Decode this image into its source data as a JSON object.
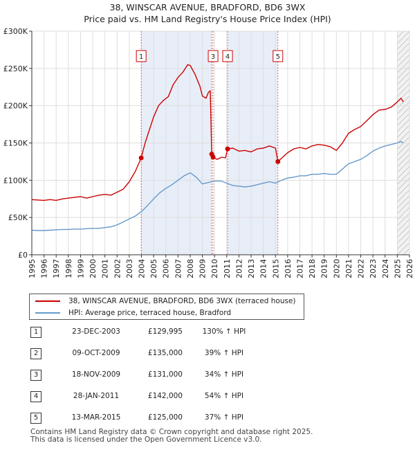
{
  "title": {
    "line1": "38, WINSCAR AVENUE, BRADFORD, BD6 3WX",
    "line2": "Price paid vs. HM Land Registry's House Price Index (HPI)"
  },
  "colors": {
    "property": "#cc0000",
    "hpi": "#6699cc",
    "shade": "#e8eef8",
    "marker_line": "#cc0000",
    "grid": "#dddddd"
  },
  "chart_data": {
    "type": "line",
    "title": "Price paid vs. HM Land Registry's House Price Index (HPI)",
    "xlabel": "",
    "ylabel": "",
    "xlim": [
      1995,
      2026
    ],
    "ylim": [
      0,
      300000
    ],
    "y_ticks": [
      0,
      50000,
      100000,
      150000,
      200000,
      250000,
      300000
    ],
    "y_tick_labels": [
      "£0",
      "£50K",
      "£100K",
      "£150K",
      "£200K",
      "£250K",
      "£300K"
    ],
    "x_ticks": [
      1995,
      1996,
      1997,
      1998,
      1999,
      2000,
      2001,
      2002,
      2003,
      2004,
      2005,
      2006,
      2007,
      2008,
      2009,
      2010,
      2011,
      2012,
      2013,
      2014,
      2015,
      2016,
      2017,
      2018,
      2019,
      2020,
      2021,
      2022,
      2023,
      2024,
      2025,
      2026
    ],
    "x_tick_labels": [
      "1995",
      "1996",
      "1997",
      "1998",
      "1999",
      "2000",
      "2001",
      "2002",
      "2003",
      "2004",
      "2005",
      "2006",
      "2007",
      "2008",
      "2009",
      "2010",
      "2011",
      "2012",
      "2013",
      "2014",
      "2015",
      "2016",
      "2017",
      "2018",
      "2019",
      "2020",
      "2021",
      "2022",
      "2023",
      "2024",
      "2025",
      "2026"
    ],
    "grid": true,
    "shaded_ranges": [
      [
        2003.98,
        2009.77
      ],
      [
        2011.07,
        2015.2
      ]
    ],
    "hatched_from": 2025.0,
    "series": [
      {
        "name": "38, WINSCAR AVENUE, BRADFORD, BD6 3WX (terraced house)",
        "color": "#cc0000",
        "points": [
          [
            1995.0,
            74000
          ],
          [
            1995.5,
            73500
          ],
          [
            1996.0,
            73000
          ],
          [
            1996.5,
            74000
          ],
          [
            1997.0,
            73000
          ],
          [
            1997.5,
            75000
          ],
          [
            1998.0,
            76000
          ],
          [
            1998.5,
            77000
          ],
          [
            1999.0,
            78000
          ],
          [
            1999.5,
            76000
          ],
          [
            2000.0,
            78000
          ],
          [
            2000.5,
            80000
          ],
          [
            2001.0,
            81000
          ],
          [
            2001.5,
            80000
          ],
          [
            2002.0,
            84000
          ],
          [
            2002.5,
            88000
          ],
          [
            2003.0,
            98000
          ],
          [
            2003.5,
            112000
          ],
          [
            2003.98,
            129995
          ],
          [
            2004.3,
            150000
          ],
          [
            2004.7,
            170000
          ],
          [
            2005.0,
            185000
          ],
          [
            2005.4,
            200000
          ],
          [
            2005.8,
            207000
          ],
          [
            2006.2,
            212000
          ],
          [
            2006.6,
            228000
          ],
          [
            2007.0,
            238000
          ],
          [
            2007.4,
            245000
          ],
          [
            2007.8,
            255000
          ],
          [
            2008.0,
            254000
          ],
          [
            2008.4,
            242000
          ],
          [
            2008.8,
            226000
          ],
          [
            2009.0,
            213000
          ],
          [
            2009.3,
            210000
          ],
          [
            2009.5,
            218000
          ],
          [
            2009.65,
            220000
          ],
          [
            2009.77,
            135000
          ],
          [
            2009.88,
            131000
          ],
          [
            2010.2,
            128000
          ],
          [
            2010.6,
            131000
          ],
          [
            2010.9,
            130000
          ],
          [
            2011.07,
            142000
          ],
          [
            2011.5,
            143000
          ],
          [
            2012.0,
            139000
          ],
          [
            2012.5,
            140000
          ],
          [
            2013.0,
            138000
          ],
          [
            2013.5,
            142000
          ],
          [
            2014.0,
            143000
          ],
          [
            2014.5,
            146000
          ],
          [
            2015.0,
            143000
          ],
          [
            2015.2,
            125000
          ],
          [
            2015.6,
            131000
          ],
          [
            2016.0,
            137000
          ],
          [
            2016.5,
            142000
          ],
          [
            2017.0,
            144000
          ],
          [
            2017.5,
            142000
          ],
          [
            2018.0,
            146000
          ],
          [
            2018.5,
            148000
          ],
          [
            2019.0,
            147000
          ],
          [
            2019.5,
            145000
          ],
          [
            2020.0,
            140000
          ],
          [
            2020.5,
            150000
          ],
          [
            2021.0,
            163000
          ],
          [
            2021.5,
            168000
          ],
          [
            2022.0,
            172000
          ],
          [
            2022.5,
            180000
          ],
          [
            2023.0,
            188000
          ],
          [
            2023.5,
            194000
          ],
          [
            2024.0,
            195000
          ],
          [
            2024.5,
            198000
          ],
          [
            2025.0,
            205000
          ],
          [
            2025.3,
            210000
          ],
          [
            2025.5,
            205000
          ]
        ]
      },
      {
        "name": "HPI: Average price, terraced house, Bradford",
        "color": "#6699cc",
        "points": [
          [
            1995.0,
            33000
          ],
          [
            1995.5,
            32500
          ],
          [
            1996.0,
            32500
          ],
          [
            1996.5,
            33000
          ],
          [
            1997.0,
            33500
          ],
          [
            1997.5,
            34000
          ],
          [
            1998.0,
            34000
          ],
          [
            1998.5,
            34500
          ],
          [
            1999.0,
            34500
          ],
          [
            1999.5,
            35000
          ],
          [
            2000.0,
            35500
          ],
          [
            2000.5,
            35500
          ],
          [
            2001.0,
            36500
          ],
          [
            2001.5,
            37500
          ],
          [
            2002.0,
            40000
          ],
          [
            2002.5,
            44000
          ],
          [
            2003.0,
            48000
          ],
          [
            2003.5,
            52000
          ],
          [
            2004.0,
            58000
          ],
          [
            2004.5,
            66000
          ],
          [
            2005.0,
            75000
          ],
          [
            2005.5,
            83000
          ],
          [
            2006.0,
            89000
          ],
          [
            2006.5,
            94000
          ],
          [
            2007.0,
            100000
          ],
          [
            2007.5,
            106000
          ],
          [
            2008.0,
            110000
          ],
          [
            2008.5,
            104000
          ],
          [
            2009.0,
            95000
          ],
          [
            2009.5,
            97000
          ],
          [
            2010.0,
            99000
          ],
          [
            2010.5,
            99000
          ],
          [
            2011.0,
            96000
          ],
          [
            2011.5,
            93000
          ],
          [
            2012.0,
            92000
          ],
          [
            2012.5,
            91000
          ],
          [
            2013.0,
            92000
          ],
          [
            2013.5,
            94000
          ],
          [
            2014.0,
            96000
          ],
          [
            2014.5,
            98000
          ],
          [
            2015.0,
            96000
          ],
          [
            2015.5,
            100000
          ],
          [
            2016.0,
            103000
          ],
          [
            2016.5,
            104000
          ],
          [
            2017.0,
            106000
          ],
          [
            2017.5,
            106000
          ],
          [
            2018.0,
            108000
          ],
          [
            2018.5,
            108000
          ],
          [
            2019.0,
            109000
          ],
          [
            2019.5,
            108000
          ],
          [
            2020.0,
            108000
          ],
          [
            2020.5,
            115000
          ],
          [
            2021.0,
            122000
          ],
          [
            2021.5,
            125000
          ],
          [
            2022.0,
            128000
          ],
          [
            2022.5,
            133000
          ],
          [
            2023.0,
            139000
          ],
          [
            2023.5,
            143000
          ],
          [
            2024.0,
            146000
          ],
          [
            2024.5,
            148000
          ],
          [
            2025.0,
            150000
          ],
          [
            2025.3,
            152000
          ],
          [
            2025.5,
            150000
          ]
        ]
      }
    ],
    "sales": [
      {
        "num": "1",
        "x": 2003.98,
        "price_value": 129995
      },
      {
        "num": "2",
        "x": 2009.77,
        "price_value": 135000
      },
      {
        "num": "3",
        "x": 2009.88,
        "price_value": 131000
      },
      {
        "num": "4",
        "x": 2011.07,
        "price_value": 142000
      },
      {
        "num": "5",
        "x": 2015.2,
        "price_value": 125000
      }
    ],
    "marker_labels": [
      {
        "num": "1",
        "x": 2003.98
      },
      {
        "num": "3",
        "x": 2009.88
      },
      {
        "num": "4",
        "x": 2011.07
      },
      {
        "num": "5",
        "x": 2015.2
      }
    ]
  },
  "legend": {
    "property_label": "38, WINSCAR AVENUE, BRADFORD, BD6 3WX (terraced house)",
    "hpi_label": "HPI: Average price, terraced house, Bradford"
  },
  "sales_table": [
    {
      "num": "1",
      "date": "23-DEC-2003",
      "price": "£129,995",
      "hpi": "130% ↑ HPI"
    },
    {
      "num": "2",
      "date": "09-OCT-2009",
      "price": "£135,000",
      "hpi": "39% ↑ HPI"
    },
    {
      "num": "3",
      "date": "18-NOV-2009",
      "price": "£131,000",
      "hpi": "34% ↑ HPI"
    },
    {
      "num": "4",
      "date": "28-JAN-2011",
      "price": "£142,000",
      "hpi": "54% ↑ HPI"
    },
    {
      "num": "5",
      "date": "13-MAR-2015",
      "price": "£125,000",
      "hpi": "37% ↑ HPI"
    }
  ],
  "footer": {
    "line1": "Contains HM Land Registry data © Crown copyright and database right 2025.",
    "line2": "This data is licensed under the Open Government Licence v3.0."
  }
}
